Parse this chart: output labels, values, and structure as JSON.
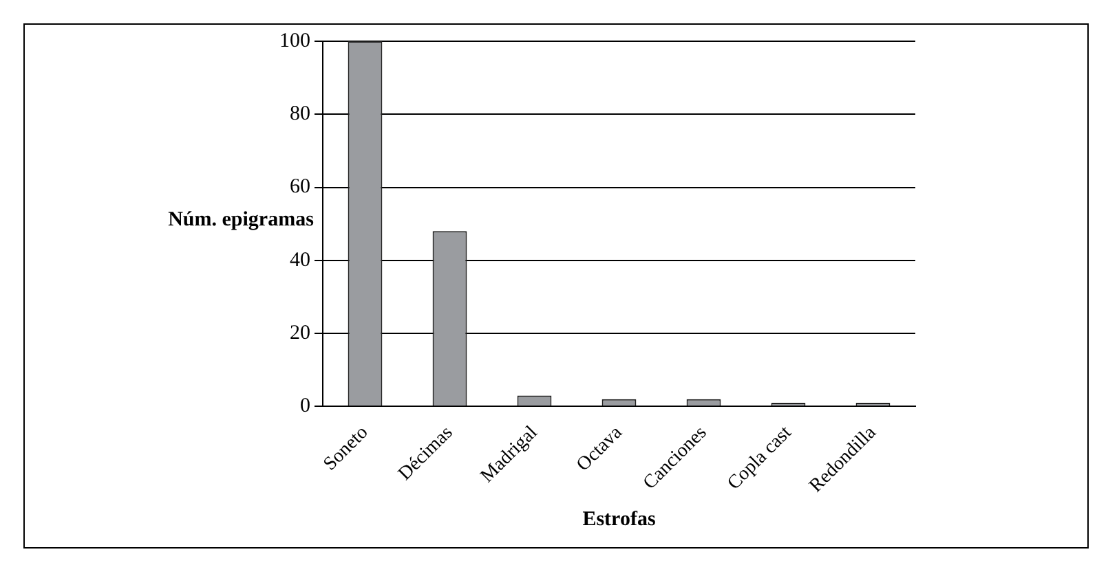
{
  "chart_data": {
    "type": "bar",
    "xlabel": "Estrofas",
    "ylabel": "Núm. epigramas",
    "categories": [
      "Soneto",
      "Décimas",
      "Madrigal",
      "Octava",
      "Canciones",
      "Copla cast",
      "Redondilla"
    ],
    "values": [
      100,
      48,
      3,
      2,
      2,
      1,
      1
    ],
    "color": "#9a9ca0",
    "ylim": [
      0,
      100
    ],
    "yticks": [
      0,
      20,
      40,
      60,
      80,
      100
    ],
    "grid": "y",
    "legend": false
  }
}
